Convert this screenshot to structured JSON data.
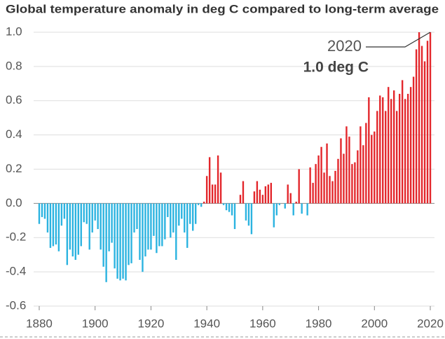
{
  "chart_data": {
    "type": "bar",
    "title": "Global temperature anomaly in deg C compared to long-term average",
    "x": [
      1880,
      1881,
      1882,
      1883,
      1884,
      1885,
      1886,
      1887,
      1888,
      1889,
      1890,
      1891,
      1892,
      1893,
      1894,
      1895,
      1896,
      1897,
      1898,
      1899,
      1900,
      1901,
      1902,
      1903,
      1904,
      1905,
      1906,
      1907,
      1908,
      1909,
      1910,
      1911,
      1912,
      1913,
      1914,
      1915,
      1916,
      1917,
      1918,
      1919,
      1920,
      1921,
      1922,
      1923,
      1924,
      1925,
      1926,
      1927,
      1928,
      1929,
      1930,
      1931,
      1932,
      1933,
      1934,
      1935,
      1936,
      1937,
      1938,
      1939,
      1940,
      1941,
      1942,
      1943,
      1944,
      1945,
      1946,
      1947,
      1948,
      1949,
      1950,
      1951,
      1952,
      1953,
      1954,
      1955,
      1956,
      1957,
      1958,
      1959,
      1960,
      1961,
      1962,
      1963,
      1964,
      1965,
      1966,
      1967,
      1968,
      1969,
      1970,
      1971,
      1972,
      1973,
      1974,
      1975,
      1976,
      1977,
      1978,
      1979,
      1980,
      1981,
      1982,
      1983,
      1984,
      1985,
      1986,
      1987,
      1988,
      1989,
      1990,
      1991,
      1992,
      1993,
      1994,
      1995,
      1996,
      1997,
      1998,
      1999,
      2000,
      2001,
      2002,
      2003,
      2004,
      2005,
      2006,
      2007,
      2008,
      2009,
      2010,
      2011,
      2012,
      2013,
      2014,
      2015,
      2016,
      2017,
      2018,
      2019,
      2020
    ],
    "values": [
      -0.12,
      -0.08,
      -0.09,
      -0.17,
      -0.26,
      -0.25,
      -0.24,
      -0.28,
      -0.13,
      -0.09,
      -0.36,
      -0.27,
      -0.31,
      -0.33,
      -0.3,
      -0.25,
      -0.11,
      -0.12,
      -0.27,
      -0.17,
      -0.1,
      -0.15,
      -0.27,
      -0.37,
      -0.46,
      -0.28,
      -0.23,
      -0.38,
      -0.44,
      -0.45,
      -0.44,
      -0.45,
      -0.36,
      -0.35,
      -0.17,
      -0.15,
      -0.33,
      -0.4,
      -0.31,
      -0.27,
      -0.27,
      -0.19,
      -0.29,
      -0.25,
      -0.25,
      -0.21,
      -0.08,
      -0.2,
      -0.17,
      -0.33,
      -0.13,
      -0.09,
      -0.17,
      -0.26,
      -0.12,
      -0.16,
      -0.12,
      -0.01,
      -0.02,
      0.01,
      0.16,
      0.27,
      0.11,
      0.11,
      0.28,
      0.18,
      -0.01,
      -0.04,
      -0.05,
      -0.07,
      -0.15,
      0.0,
      0.05,
      0.13,
      -0.1,
      -0.13,
      -0.18,
      0.07,
      0.13,
      0.08,
      0.05,
      0.1,
      0.11,
      0.12,
      -0.14,
      -0.07,
      -0.01,
      0.0,
      -0.03,
      0.11,
      0.06,
      -0.07,
      0.01,
      0.2,
      -0.06,
      0.0,
      -0.07,
      0.21,
      0.12,
      0.23,
      0.28,
      0.33,
      0.18,
      0.35,
      0.16,
      0.13,
      0.19,
      0.26,
      0.38,
      0.29,
      0.45,
      0.39,
      0.23,
      0.24,
      0.31,
      0.45,
      0.34,
      0.47,
      0.62,
      0.4,
      0.42,
      0.54,
      0.63,
      0.62,
      0.54,
      0.68,
      0.61,
      0.66,
      0.54,
      0.64,
      0.72,
      0.61,
      0.64,
      0.68,
      0.74,
      0.9,
      1.0,
      0.92,
      0.83,
      0.95,
      1.0
    ],
    "positive_color": "#e3262b",
    "negative_color": "#2bb3e0",
    "xlim": [
      1878,
      2021.5
    ],
    "xticks": [
      1880,
      1900,
      1920,
      1940,
      1960,
      1980,
      2000,
      2020
    ],
    "ylim": [
      -0.6,
      1.0
    ],
    "yticks": [
      {
        "value": 1.0,
        "label": "1.0"
      },
      0.8,
      0.6,
      0.4,
      0.2,
      {
        "value": 0.0,
        "label": "0.0"
      },
      -0.2,
      -0.4,
      -0.6
    ],
    "grid": true,
    "annotation": {
      "label": "2020",
      "value_label": "1.0 deg C"
    }
  }
}
